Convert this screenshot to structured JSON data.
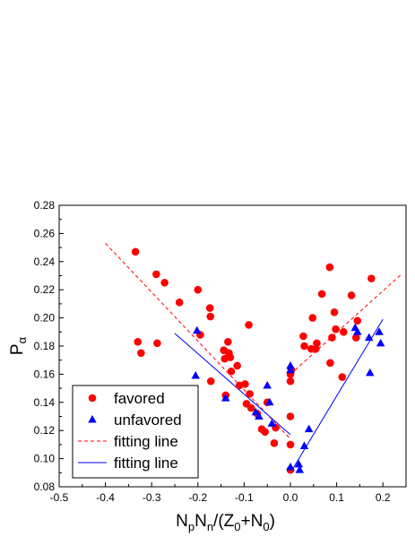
{
  "chart_data": {
    "type": "scatter",
    "xlabel": "NpNn/(Z0+N0)",
    "ylabel": "Pα",
    "xlim": [
      -0.5,
      0.25
    ],
    "ylim": [
      0.08,
      0.28
    ],
    "x_ticks": [
      -0.5,
      -0.4,
      -0.3,
      -0.2,
      -0.1,
      0.0,
      0.1,
      0.2
    ],
    "x_tick_labels": [
      "-0.5",
      "-0.4",
      "-0.3",
      "-0.2",
      "-0.1",
      "0.0",
      "0.1",
      "0.2"
    ],
    "y_ticks": [
      0.08,
      0.1,
      0.12,
      0.14,
      0.16,
      0.18,
      0.2,
      0.22,
      0.24,
      0.26,
      0.28
    ],
    "y_tick_labels": [
      "0.08",
      "0.10",
      "0.12",
      "0.14",
      "0.16",
      "0.18",
      "0.20",
      "0.22",
      "0.24",
      "0.26",
      "0.28"
    ],
    "grid": false,
    "legend_position": "bottom-left",
    "series": [
      {
        "name": "favored",
        "kind": "points",
        "marker": "circle",
        "color": "#ff0000",
        "points": [
          [
            -0.335,
            0.247
          ],
          [
            -0.33,
            0.183
          ],
          [
            -0.323,
            0.175
          ],
          [
            -0.29,
            0.231
          ],
          [
            -0.288,
            0.182
          ],
          [
            -0.272,
            0.225
          ],
          [
            -0.24,
            0.211
          ],
          [
            -0.2,
            0.22
          ],
          [
            -0.195,
            0.188
          ],
          [
            -0.174,
            0.207
          ],
          [
            -0.173,
            0.201
          ],
          [
            -0.172,
            0.155
          ],
          [
            -0.144,
            0.177
          ],
          [
            -0.142,
            0.171
          ],
          [
            -0.14,
            0.145
          ],
          [
            -0.135,
            0.183
          ],
          [
            -0.133,
            0.175
          ],
          [
            -0.13,
            0.172
          ],
          [
            -0.128,
            0.162
          ],
          [
            -0.115,
            0.166
          ],
          [
            -0.11,
            0.152
          ],
          [
            -0.098,
            0.153
          ],
          [
            -0.095,
            0.139
          ],
          [
            -0.09,
            0.195
          ],
          [
            -0.088,
            0.146
          ],
          [
            -0.085,
            0.136
          ],
          [
            -0.072,
            0.132
          ],
          [
            -0.062,
            0.121
          ],
          [
            -0.055,
            0.119
          ],
          [
            -0.05,
            0.14
          ],
          [
            -0.035,
            0.111
          ],
          [
            -0.032,
            0.122
          ],
          [
            0.0,
            0.092
          ],
          [
            0.0,
            0.11
          ],
          [
            0.0,
            0.13
          ],
          [
            0.0,
            0.16
          ],
          [
            0.0,
            0.155
          ],
          [
            0.002,
            0.163
          ],
          [
            0.028,
            0.187
          ],
          [
            0.03,
            0.18
          ],
          [
            0.045,
            0.178
          ],
          [
            0.048,
            0.2
          ],
          [
            0.055,
            0.178
          ],
          [
            0.057,
            0.182
          ],
          [
            0.068,
            0.217
          ],
          [
            0.085,
            0.236
          ],
          [
            0.086,
            0.168
          ],
          [
            0.09,
            0.186
          ],
          [
            0.095,
            0.204
          ],
          [
            0.098,
            0.192
          ],
          [
            0.112,
            0.158
          ],
          [
            0.115,
            0.19
          ],
          [
            0.132,
            0.216
          ],
          [
            0.142,
            0.186
          ],
          [
            0.145,
            0.198
          ],
          [
            0.175,
            0.228
          ]
        ]
      },
      {
        "name": "unfavored",
        "kind": "points",
        "marker": "triangle",
        "color": "#0000ff",
        "points": [
          [
            -0.202,
            0.191
          ],
          [
            -0.205,
            0.159
          ],
          [
            -0.14,
            0.143
          ],
          [
            -0.075,
            0.133
          ],
          [
            -0.068,
            0.13
          ],
          [
            -0.05,
            0.152
          ],
          [
            -0.045,
            0.14
          ],
          [
            -0.04,
            0.125
          ],
          [
            0.0,
            0.166
          ],
          [
            0.0,
            0.163
          ],
          [
            0.0,
            0.094
          ],
          [
            0.018,
            0.096
          ],
          [
            0.02,
            0.092
          ],
          [
            0.03,
            0.109
          ],
          [
            0.04,
            0.121
          ],
          [
            0.14,
            0.193
          ],
          [
            0.145,
            0.19
          ],
          [
            0.17,
            0.186
          ],
          [
            0.172,
            0.161
          ],
          [
            0.192,
            0.19
          ],
          [
            0.195,
            0.182
          ]
        ]
      },
      {
        "name": "fitting line",
        "kind": "line",
        "style": "dashed",
        "color": "#ff0000",
        "segments": [
          [
            [
              -0.4,
              0.253
            ],
            [
              0.0,
              0.114
            ]
          ],
          [
            [
              0.0,
              0.16
            ],
            [
              0.24,
              0.231
            ]
          ]
        ]
      },
      {
        "name": "fitting line",
        "kind": "line",
        "style": "solid",
        "color": "#0000ff",
        "segments": [
          [
            [
              -0.25,
              0.189
            ],
            [
              0.0,
              0.117
            ]
          ],
          [
            [
              0.0,
              0.09
            ],
            [
              0.2,
              0.199
            ]
          ]
        ]
      }
    ]
  }
}
